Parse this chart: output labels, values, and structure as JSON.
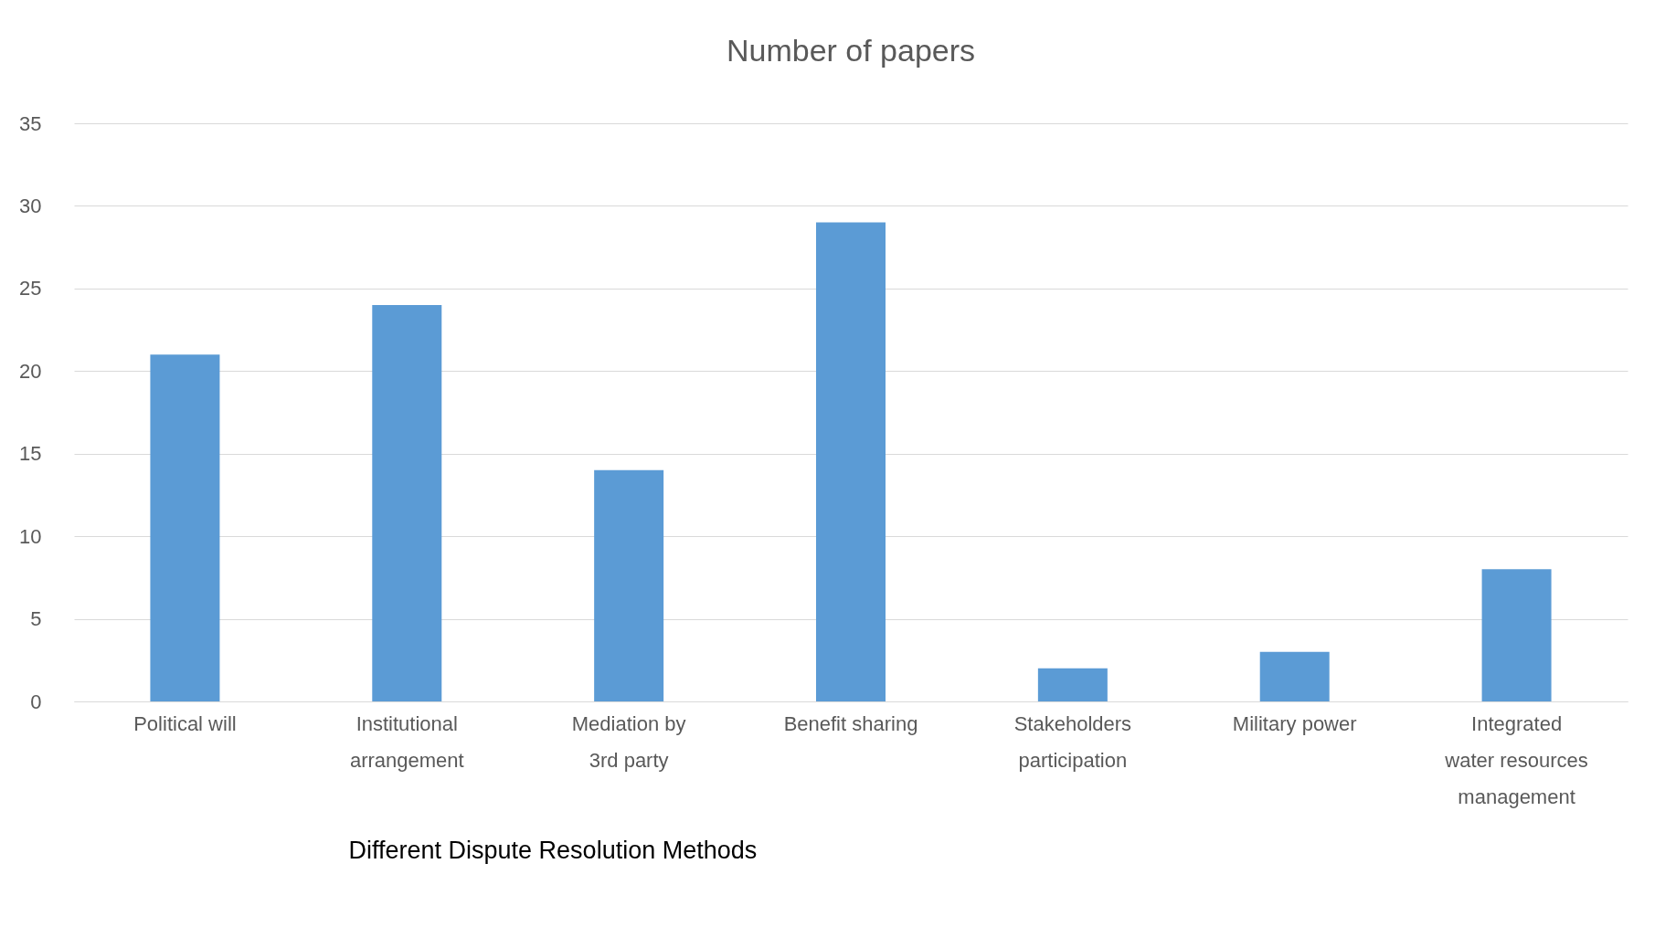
{
  "chart_data": {
    "type": "bar",
    "title": "Number of papers",
    "xlabel": "Different Dispute Resolution Methods",
    "categories": [
      "Political will",
      "Institutional arrangement",
      "Mediation by 3rd party",
      "Benefit sharing",
      "Stakeholders participation",
      "Military power",
      "Integrated water resources management"
    ],
    "values": [
      21,
      24,
      14,
      29,
      2,
      3,
      8
    ],
    "color": "#5b9bd5",
    "ylim": [
      0,
      35
    ],
    "yticks": [
      0,
      5,
      10,
      15,
      20,
      25,
      30,
      35
    ],
    "grid": "y"
  }
}
